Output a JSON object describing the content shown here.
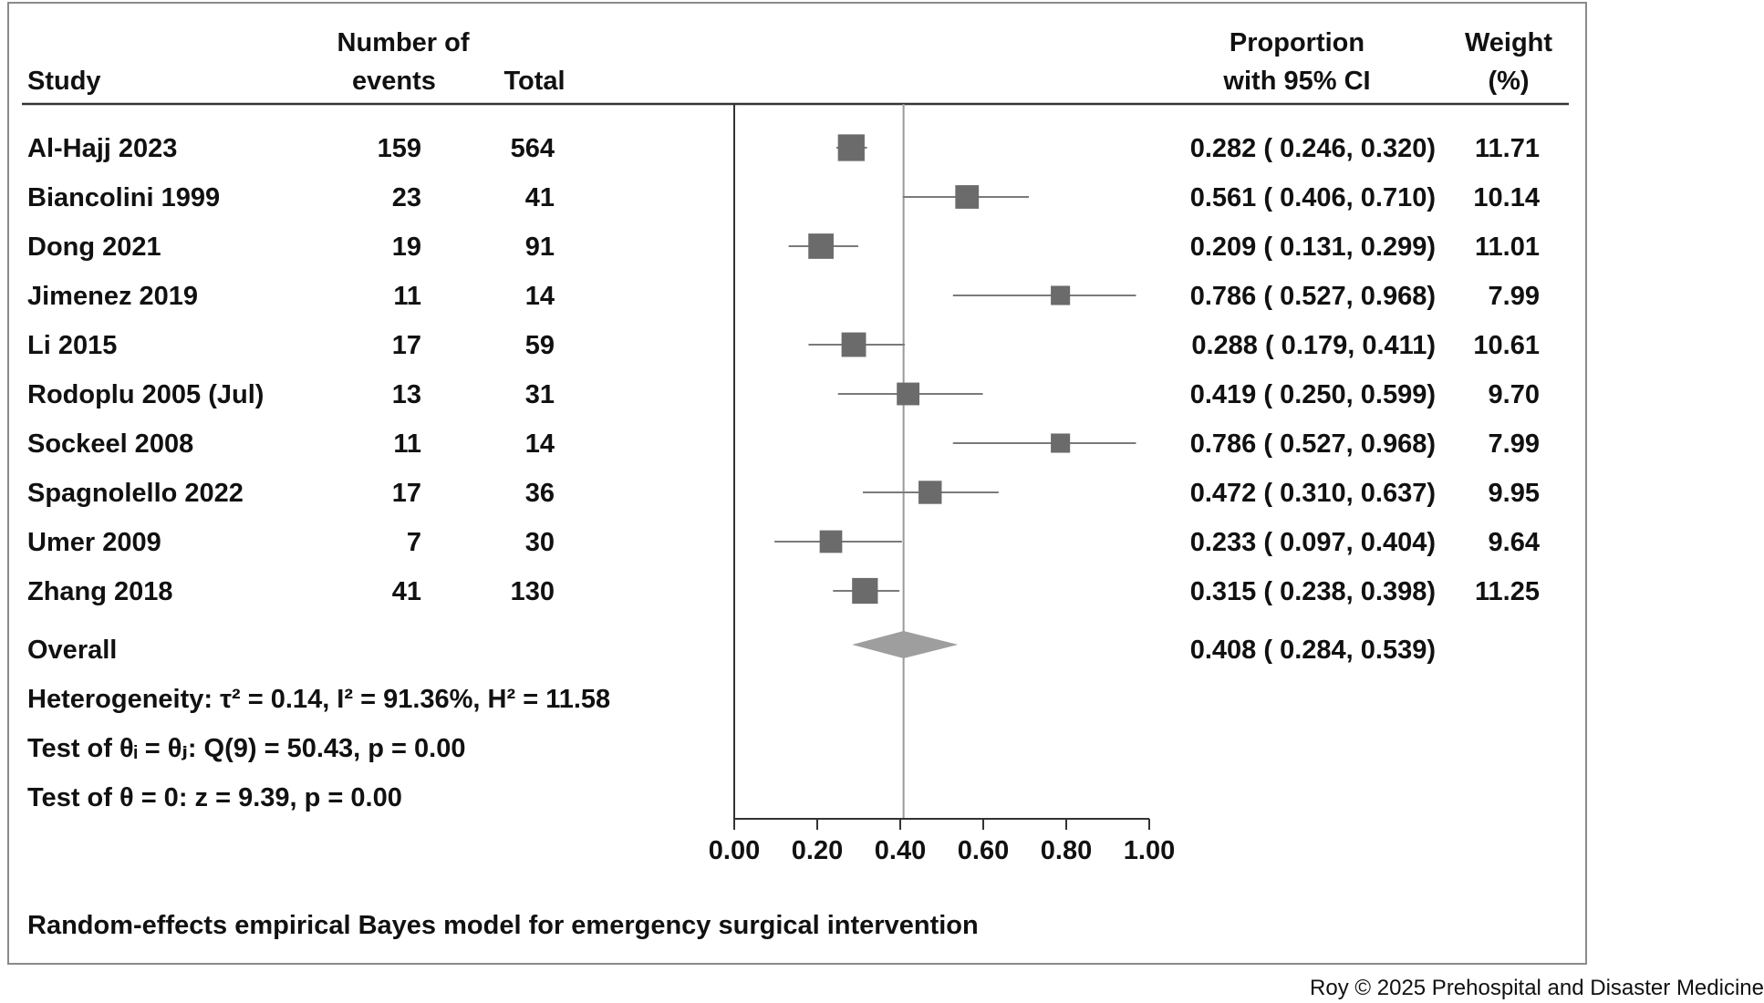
{
  "chart_data": {
    "type": "forest",
    "header": {
      "study": "Study",
      "events_line1": "Number of",
      "events_line2": "events",
      "total": "Total",
      "ci_line1": "Proportion",
      "ci_line2": "with 95% CI",
      "weight_line1": "Weight",
      "weight_line2": "(%)"
    },
    "studies": [
      {
        "study": "Al-Hajj 2023",
        "events": "159",
        "total": "564",
        "est": 0.282,
        "lo": 0.246,
        "hi": 0.32,
        "ci_text": "0.282 ( 0.246,  0.320)",
        "weight": "11.71"
      },
      {
        "study": "Biancolini 1999",
        "events": "23",
        "total": "41",
        "est": 0.561,
        "lo": 0.406,
        "hi": 0.71,
        "ci_text": "0.561 ( 0.406,  0.710)",
        "weight": "10.14"
      },
      {
        "study": "Dong 2021",
        "events": "19",
        "total": "91",
        "est": 0.209,
        "lo": 0.131,
        "hi": 0.299,
        "ci_text": "0.209 ( 0.131,  0.299)",
        "weight": "11.01"
      },
      {
        "study": "Jimenez 2019",
        "events": "11",
        "total": "14",
        "est": 0.786,
        "lo": 0.527,
        "hi": 0.968,
        "ci_text": "0.786 ( 0.527,  0.968)",
        "weight": "7.99"
      },
      {
        "study": "Li 2015",
        "events": "17",
        "total": "59",
        "est": 0.288,
        "lo": 0.179,
        "hi": 0.411,
        "ci_text": "0.288 ( 0.179,  0.411)",
        "weight": "10.61"
      },
      {
        "study": "Rodoplu 2005 (Jul)",
        "events": "13",
        "total": "31",
        "est": 0.419,
        "lo": 0.25,
        "hi": 0.599,
        "ci_text": "0.419 ( 0.250,  0.599)",
        "weight": "9.70"
      },
      {
        "study": "Sockeel 2008",
        "events": "11",
        "total": "14",
        "est": 0.786,
        "lo": 0.527,
        "hi": 0.968,
        "ci_text": "0.786 ( 0.527,  0.968)",
        "weight": "7.99"
      },
      {
        "study": "Spagnolello 2022",
        "events": "17",
        "total": "36",
        "est": 0.472,
        "lo": 0.31,
        "hi": 0.637,
        "ci_text": "0.472 ( 0.310,  0.637)",
        "weight": "9.95"
      },
      {
        "study": "Umer 2009",
        "events": "7",
        "total": "30",
        "est": 0.233,
        "lo": 0.097,
        "hi": 0.404,
        "ci_text": "0.233 ( 0.097,  0.404)",
        "weight": "9.64"
      },
      {
        "study": "Zhang 2018",
        "events": "41",
        "total": "130",
        "est": 0.315,
        "lo": 0.238,
        "hi": 0.398,
        "ci_text": "0.315 ( 0.238,  0.398)",
        "weight": "11.25"
      }
    ],
    "overall": {
      "label": "Overall",
      "est": 0.408,
      "lo": 0.284,
      "hi": 0.539,
      "ci_text": "0.408 ( 0.284,  0.539)"
    },
    "xlim": [
      0,
      1
    ],
    "xticks": [
      "0.00",
      "0.20",
      "0.40",
      "0.60",
      "0.80",
      "1.00"
    ],
    "reference_line": 0.408,
    "stats": {
      "heterogeneity": "Heterogeneity: τ² = 0.14, I² = 91.36%, H² = 11.58",
      "test_theta_ij": "Test of θᵢ = θⱼ: Q(9) = 50.43, p = 0.00",
      "test_theta_zero": "Test of θ = 0: z = 9.39, p = 0.00"
    },
    "footnote": "Random-effects empirical Bayes model for emergency surgical intervention",
    "colors": {
      "marker": "#6b6b6b",
      "diamond": "#9e9e9e",
      "ci_line": "#7a7a7a",
      "axis": "#333333",
      "ref_line": "#9a9a9a"
    }
  },
  "credit": "Roy © 2025 Prehospital and Disaster Medicine"
}
